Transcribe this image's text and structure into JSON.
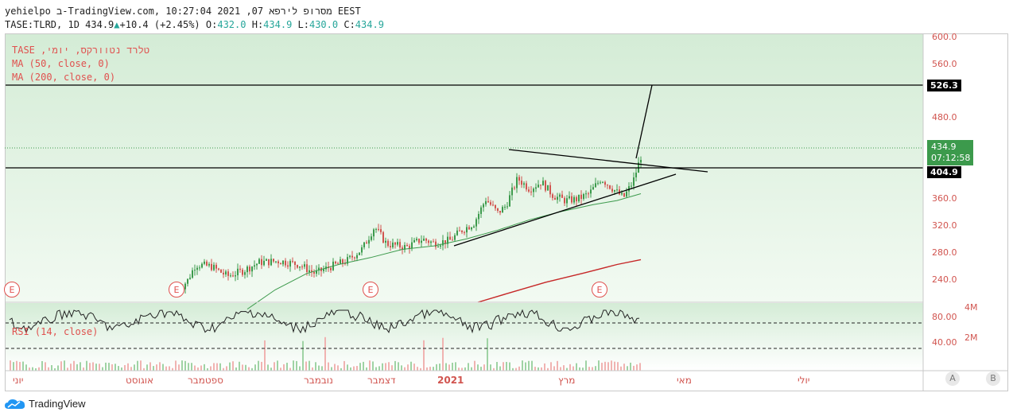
{
  "header": {
    "line1": "yehielpo ב-TradingView.com, מסרופ לירפא 07, 2021 10:27:04 EEST",
    "symbol_line": "TASE:TLRD, 1D 434.9",
    "change": "+10.4 (+2.45%)",
    "o_label": "O:",
    "o_value": "432.0",
    "h_label": "H:",
    "h_value": "434.9",
    "l_label": "L:",
    "l_value": "430.0",
    "c_label": "C:",
    "c_value": "434.9"
  },
  "legend": {
    "title": "TASE ,טלרד נטוורקס, יומי",
    "ma50": "MA (50, close, 0)",
    "ma200": "MA (200, close, 0)",
    "rsi": "RSI (14, close)"
  },
  "price_axis": {
    "labels": [
      "600.0",
      "560.0",
      "480.0",
      "360.0",
      "320.0",
      "280.0",
      "240.0"
    ],
    "tag_upper": "526.3",
    "tag_lower": "404.9",
    "current_price": "434.9",
    "countdown": "07:12:58"
  },
  "rsi_axis": [
    "80.00",
    "40.00"
  ],
  "volume_axis": [
    "4M",
    "2M"
  ],
  "time_axis": [
    "יוני",
    "אוגוסט",
    "ספטמבר",
    "נובמבר",
    "דצמבר",
    "2021",
    "מרץ",
    "מאי",
    "יולי"
  ],
  "earnings_badge": "E",
  "scale_buttons": [
    "A",
    "B"
  ],
  "footer": {
    "brand": "TradingView"
  },
  "colors": {
    "up": "#26a69a",
    "candle_up": "#3c9a4c",
    "candle_down": "#d1544f",
    "ma50": "#3c9a4c",
    "ma200": "#c62828",
    "tag_current": "#3c9a4c"
  },
  "chart_data": {
    "type": "candlestick",
    "ylim": [
      220,
      610
    ],
    "ma50_series_name": "MA (50, close, 0)",
    "ma200_series_name": "MA (200, close, 0)",
    "horizontal_levels": [
      526.3,
      404.9
    ],
    "current_price": 434.9,
    "rsi_levels": [
      70,
      30
    ],
    "rsi_ylim": [
      20,
      100
    ]
  }
}
